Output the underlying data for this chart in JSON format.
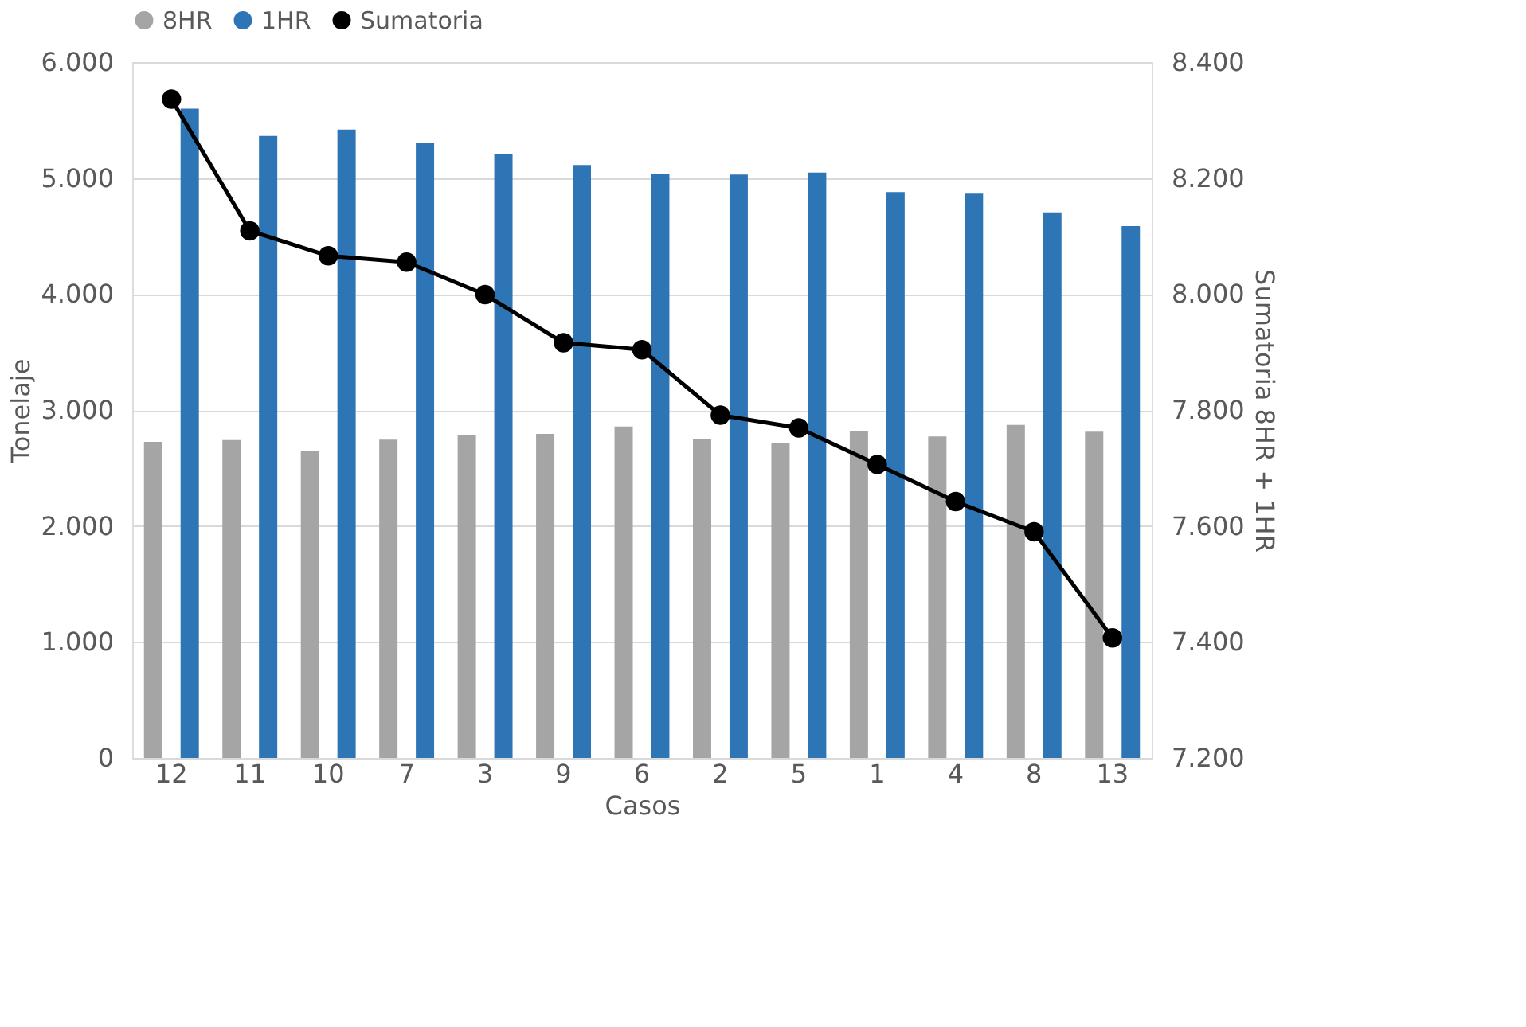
{
  "chart_data": {
    "type": "bar",
    "xlabel": "Casos",
    "ylabel": "Tonelaje",
    "y2label": "Sumatoria 8HR + 1HR",
    "categories": [
      "12",
      "11",
      "10",
      "7",
      "3",
      "9",
      "6",
      "2",
      "5",
      "1",
      "4",
      "8",
      "13"
    ],
    "series": [
      {
        "name": "8HR",
        "color": "#a5a5a5",
        "values": [
          2725,
          2740,
          2643,
          2744,
          2785,
          2794,
          2858,
          2749,
          2716,
          2817,
          2771,
          2872,
          2813
        ]
      },
      {
        "name": "1HR",
        "color": "#2e75b6",
        "values": [
          5598,
          5364,
          5419,
          5305,
          5204,
          5112,
          5034,
          5030,
          5048,
          4879,
          4865,
          4705,
          4585
        ]
      },
      {
        "name": "Sumatoria",
        "color": "#000000",
        "type": "line",
        "axis": "y2",
        "marker": "circle",
        "values": [
          8336,
          8109,
          8066,
          8055,
          7999,
          7916,
          7904,
          7791,
          7769,
          7706,
          7642,
          7590,
          7407
        ]
      }
    ],
    "ylim": [
      0,
      6000
    ],
    "yticks": [
      0,
      {
        "value": 1000,
        "label": "1.000"
      },
      {
        "value": 2000,
        "label": "2.000"
      },
      {
        "value": 3000,
        "label": "3.000"
      },
      {
        "value": 4000,
        "label": "4.000"
      },
      {
        "value": 5000,
        "label": "5.000"
      },
      {
        "value": 6000,
        "label": "6.000"
      }
    ],
    "y2lim": [
      7200,
      8400
    ],
    "y2ticks": [
      {
        "value": 7200,
        "label": "7.200"
      },
      {
        "value": 7400,
        "label": "7.400"
      },
      {
        "value": 7600,
        "label": "7.600"
      },
      {
        "value": 7800,
        "label": "7.800"
      },
      {
        "value": 8000,
        "label": "8.000"
      },
      {
        "value": 8200,
        "label": "8.200"
      },
      {
        "value": 8400,
        "label": "8.400"
      }
    ],
    "grid": "y",
    "legend": "top"
  }
}
